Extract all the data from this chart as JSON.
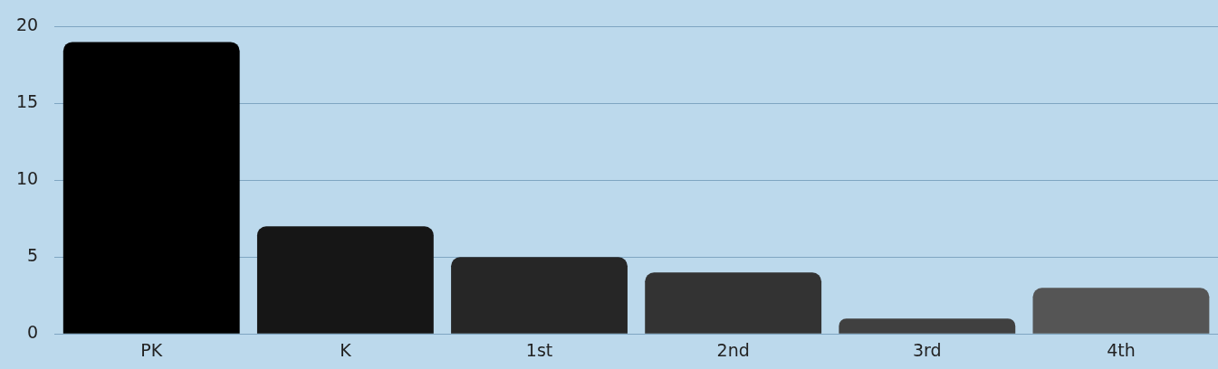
{
  "chart_data": {
    "type": "bar",
    "categories": [
      "PK",
      "K",
      "1st",
      "2nd",
      "3rd",
      "4th"
    ],
    "values": [
      19,
      7,
      5,
      4,
      1,
      3
    ],
    "colors": [
      "#000000",
      "#161616",
      "#262626",
      "#333333",
      "#404040",
      "#555555"
    ],
    "ylim": [
      0,
      20
    ],
    "yticks": [
      0,
      5,
      10,
      15,
      20
    ],
    "grid": "y"
  }
}
